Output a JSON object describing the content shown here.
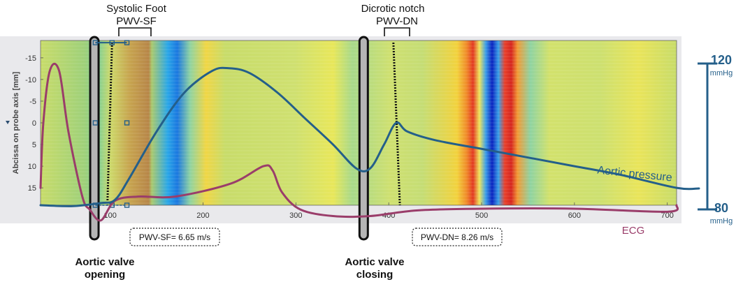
{
  "chart_data": {
    "type": "line",
    "title": "",
    "ylabel": "Abcissa on probe axis [mm]",
    "xlabel": "",
    "xlim": [
      25,
      710
    ],
    "ylim": [
      -19,
      19
    ],
    "y_inverted": true,
    "xticks": [
      100,
      200,
      300,
      400,
      500,
      600,
      700
    ],
    "yticks": [
      -15,
      -10,
      -5,
      0,
      5,
      10,
      15
    ],
    "background": "space-time heatmap (green/yellow with red-blue bands)",
    "annotations": {
      "systolic_foot": {
        "title": "Systolic Foot",
        "label": "PWV-SF"
      },
      "dicrotic_notch": {
        "title": "Dicrotic notch",
        "label": "PWV-DN"
      },
      "pwv_sf_value": "PWV-SF= 6.65 m/s",
      "pwv_dn_value": "PWV-DN= 8.26 m/s",
      "valve_opening": [
        "Aortic valve",
        "opening"
      ],
      "valve_closing": [
        "Aortic valve",
        "closing"
      ]
    },
    "pressure_scale": {
      "high": "120",
      "low": "80",
      "unit": "mmHg"
    },
    "series": [
      {
        "name": "Aortic pressure",
        "color": "#245f8a",
        "x": [
          25,
          60,
          90,
          105,
          120,
          150,
          180,
          210,
          228,
          250,
          280,
          310,
          340,
          365,
          380,
          395,
          408,
          420,
          450,
          500,
          550,
          600,
          650,
          710
        ],
        "y": [
          19,
          19.2,
          18.5,
          17.8,
          13,
          2,
          -7,
          -12,
          -12.6,
          -11.5,
          -7,
          -1,
          5,
          10.5,
          10.5,
          5,
          0,
          2,
          4,
          6,
          8,
          10,
          12,
          15
        ]
      },
      {
        "name": "ECG",
        "color": "#9a3d6a",
        "x": [
          25,
          28,
          35,
          45,
          55,
          70,
          78,
          90,
          105,
          130,
          170,
          230,
          265,
          275,
          285,
          305,
          340,
          380,
          430,
          500,
          600,
          700,
          710
        ],
        "y": [
          15,
          0,
          -12,
          -12,
          2,
          17,
          20,
          22.5,
          18,
          17,
          17,
          14,
          10,
          11,
          16,
          20,
          21.5,
          21.5,
          20.2,
          19.8,
          19.8,
          20.5,
          19
        ]
      }
    ],
    "velocity_lines": [
      {
        "x1": 102,
        "y1": -18.5,
        "x2": 97,
        "y2": 19
      },
      {
        "x1": 405,
        "y1": -18.5,
        "x2": 412,
        "y2": 19
      }
    ],
    "vertical_bars": [
      {
        "x": 83,
        "label": "opening"
      },
      {
        "x": 373,
        "label": "closing"
      }
    ]
  }
}
